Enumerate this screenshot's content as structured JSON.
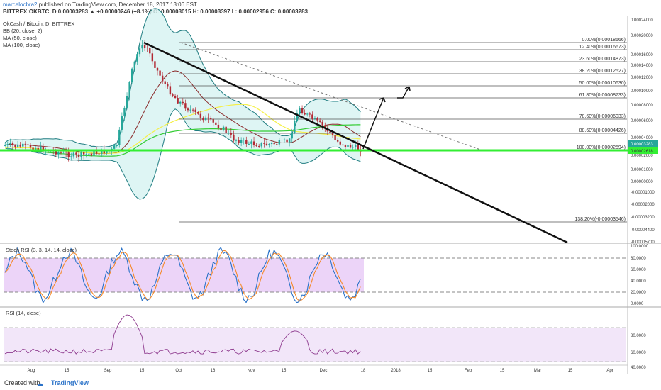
{
  "header": {
    "author": "marcelocbra2",
    "published": "published on TradingView.com, December 18, 2017 13:06 EST",
    "quote": "BITTREX:OKBTC, D  0.00003283 ▲ +0.00000246 (+8.1%)  O: 0.00003015  H: 0.00003397  L: 0.00002956  C: 0.00003283"
  },
  "footer": {
    "created": "Created with",
    "brand": "TradingView"
  },
  "colors": {
    "accent": "#2a72c8",
    "up": "#26a69a",
    "down": "#b22833",
    "support": "#33ee33",
    "bb": "#1e7c80",
    "ma50": "#ffff44",
    "ma100": "#33cc33",
    "stoch": "#e040fb"
  },
  "chart_data": [
    {
      "type": "candlestick",
      "legend": [
        "OkCash / Bitcoin, D, BITTREX",
        "BB (20, close, 2)",
        "MA (50, close)",
        "MA (100, close)"
      ],
      "x_ticks": [
        "Aug",
        "15",
        "Sep",
        "15",
        "Oct",
        "16",
        "Nov",
        "15",
        "Dec",
        "18",
        "2018",
        "15",
        "Feb",
        "15",
        "Mar",
        "15",
        "Apr"
      ],
      "y_ticks": [
        "0.00024000",
        "0.00020000",
        "0.00016000",
        "0.00014000",
        "0.00012000",
        "0.00010000",
        "0.00008000",
        "0.00006000",
        "0.00004000",
        "0.00002000",
        "0.00001000",
        "0.00000000",
        "-0.00001000",
        "-0.00002000",
        "-0.00003200",
        "-0.00004400",
        "-0.00005700"
      ],
      "last_price": "0.00003283",
      "support_price": "0.00002618",
      "fib_levels": [
        {
          "label": "0.00%(0.00018666)",
          "value": 0.00018666
        },
        {
          "label": "12.40%(0.00016673)",
          "value": 0.00016673
        },
        {
          "label": "23.60%(0.00014873)",
          "value": 0.00014873
        },
        {
          "label": "38.20%(0.00012527)",
          "value": 0.00012527
        },
        {
          "label": "50.00%(0.00010630)",
          "value": 0.0001063
        },
        {
          "label": "61.80%(0.00008733)",
          "value": 8.733e-05
        },
        {
          "label": "78.60%(0.00006033)",
          "value": 6.033e-05
        },
        {
          "label": "88.60%(0.00004426)",
          "value": 4.426e-05
        },
        {
          "label": "100.00%(0.00002594)",
          "value": 2.594e-05
        },
        {
          "label": "138.20%(-0.00003546)",
          "value": -3.546e-05
        }
      ]
    },
    {
      "type": "line",
      "title": "Stoch RSI (3, 3, 14, 14, close)",
      "y_ticks": [
        "100.0000",
        "80.0000",
        "60.0000",
        "40.0000",
        "20.0000",
        "0.0000"
      ],
      "bands": [
        20,
        80
      ]
    },
    {
      "type": "line",
      "title": "RSI (14, close)",
      "y_ticks": [
        "80.0000",
        "60.0000",
        "40.0000"
      ],
      "bands": [
        30,
        70
      ]
    }
  ]
}
